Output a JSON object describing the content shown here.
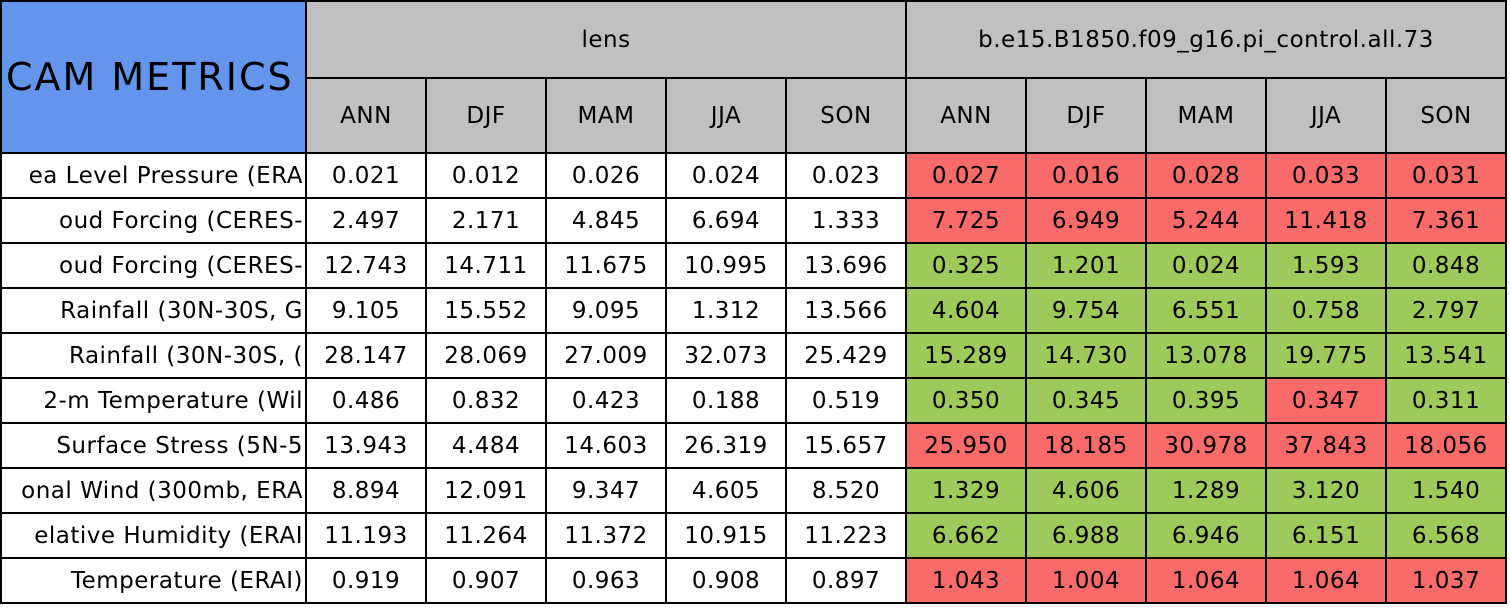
{
  "table": {
    "corner": "CAM METRICS",
    "groups": [
      "lens",
      "b.e15.B1850.f09_g16.pi_control.all.73"
    ],
    "seasons": [
      "ANN",
      "DJF",
      "MAM",
      "JJA",
      "SON"
    ],
    "status_colors": {
      "worse": "#f96b6b",
      "better": "#9ec95b"
    },
    "rows": [
      {
        "label": "ea Level Pressure (ERA",
        "lens": [
          "0.021",
          "0.012",
          "0.026",
          "0.024",
          "0.023"
        ],
        "control": [
          "0.027",
          "0.016",
          "0.028",
          "0.033",
          "0.031"
        ],
        "status": [
          "worse",
          "worse",
          "worse",
          "worse",
          "worse"
        ]
      },
      {
        "label": "oud Forcing (CERES-",
        "lens": [
          "2.497",
          "2.171",
          "4.845",
          "6.694",
          "1.333"
        ],
        "control": [
          "7.725",
          "6.949",
          "5.244",
          "11.418",
          "7.361"
        ],
        "status": [
          "worse",
          "worse",
          "worse",
          "worse",
          "worse"
        ]
      },
      {
        "label": "oud Forcing (CERES-",
        "lens": [
          "12.743",
          "14.711",
          "11.675",
          "10.995",
          "13.696"
        ],
        "control": [
          "0.325",
          "1.201",
          "0.024",
          "1.593",
          "0.848"
        ],
        "status": [
          "better",
          "better",
          "better",
          "better",
          "better"
        ]
      },
      {
        "label": "Rainfall (30N-30S, G",
        "lens": [
          "9.105",
          "15.552",
          "9.095",
          "1.312",
          "13.566"
        ],
        "control": [
          "4.604",
          "9.754",
          "6.551",
          "0.758",
          "2.797"
        ],
        "status": [
          "better",
          "better",
          "better",
          "better",
          "better"
        ]
      },
      {
        "label": "Rainfall (30N-30S, (",
        "lens": [
          "28.147",
          "28.069",
          "27.009",
          "32.073",
          "25.429"
        ],
        "control": [
          "15.289",
          "14.730",
          "13.078",
          "19.775",
          "13.541"
        ],
        "status": [
          "better",
          "better",
          "better",
          "better",
          "better"
        ]
      },
      {
        "label": "2-m Temperature (Wil",
        "lens": [
          "0.486",
          "0.832",
          "0.423",
          "0.188",
          "0.519"
        ],
        "control": [
          "0.350",
          "0.345",
          "0.395",
          "0.347",
          "0.311"
        ],
        "status": [
          "better",
          "better",
          "better",
          "worse",
          "better"
        ]
      },
      {
        "label": "Surface Stress (5N-5",
        "lens": [
          "13.943",
          "4.484",
          "14.603",
          "26.319",
          "15.657"
        ],
        "control": [
          "25.950",
          "18.185",
          "30.978",
          "37.843",
          "18.056"
        ],
        "status": [
          "worse",
          "worse",
          "worse",
          "worse",
          "worse"
        ]
      },
      {
        "label": "onal Wind (300mb, ERA",
        "lens": [
          "8.894",
          "12.091",
          "9.347",
          "4.605",
          "8.520"
        ],
        "control": [
          "1.329",
          "4.606",
          "1.289",
          "3.120",
          "1.540"
        ],
        "status": [
          "better",
          "better",
          "better",
          "better",
          "better"
        ]
      },
      {
        "label": "elative Humidity (ERAI",
        "lens": [
          "11.193",
          "11.264",
          "11.372",
          "10.915",
          "11.223"
        ],
        "control": [
          "6.662",
          "6.988",
          "6.946",
          "6.151",
          "6.568"
        ],
        "status": [
          "better",
          "better",
          "better",
          "better",
          "better"
        ]
      },
      {
        "label": "Temperature (ERAI)",
        "lens": [
          "0.919",
          "0.907",
          "0.963",
          "0.908",
          "0.897"
        ],
        "control": [
          "1.043",
          "1.004",
          "1.064",
          "1.064",
          "1.037"
        ],
        "status": [
          "worse",
          "worse",
          "worse",
          "worse",
          "worse"
        ]
      }
    ]
  }
}
